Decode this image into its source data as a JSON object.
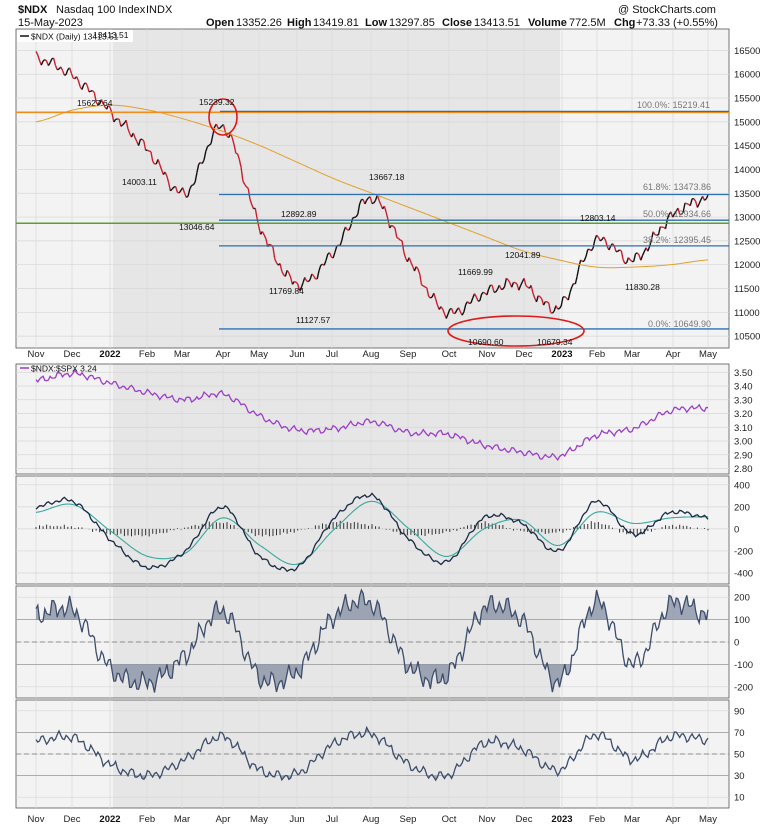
{
  "header": {
    "symbol": "$NDX",
    "name": "Nasdaq 100 Index",
    "exchange": "INDX",
    "date": "15-May-2023",
    "open_label": "Open",
    "open": "13352.26",
    "high_label": "High",
    "high": "13419.81",
    "low_label": "Low",
    "low": "13297.85",
    "close_label": "Close",
    "close": "13413.51",
    "volume_label": "Volume",
    "volume": "772.5M",
    "chg_label": "Chg",
    "chg": "+73.33 (+0.55%)",
    "watermark": "@ StockCharts.com"
  },
  "legend": {
    "main": "$NDX (Daily) 13413.51",
    "ratio": "$NDX:$SPX 3.24"
  },
  "x_ticks": [
    "Nov",
    "Dec",
    "2022",
    "Feb",
    "Mar",
    "Apr",
    "May",
    "Jun",
    "Jul",
    "Aug",
    "Sep",
    "Oct",
    "Nov",
    "Dec",
    "2023",
    "Feb",
    "Mar",
    "Apr",
    "May"
  ],
  "price_ticks": [
    "16500",
    "16000",
    "15500",
    "15000",
    "14500",
    "14000",
    "13500",
    "13000",
    "12500",
    "12000",
    "11500",
    "11000",
    "10500"
  ],
  "ratio_ticks": [
    "3.50",
    "3.40",
    "3.30",
    "3.20",
    "3.10",
    "3.00",
    "2.90",
    "2.80"
  ],
  "macd_ticks": [
    "400",
    "200",
    "0",
    "-200",
    "-400"
  ],
  "cci_ticks": [
    "200",
    "100",
    "0",
    "-100",
    "-200"
  ],
  "rsi_ticks": [
    "90",
    "70",
    "50",
    "30",
    "10"
  ],
  "fib_labels": [
    "100.0%: 15219.41",
    "61.8%: 13473.86",
    "50.0%: 12934.66",
    "38.2%: 12395.45",
    "0.0%: 10649.90"
  ],
  "price_annotations": [
    "13413.51",
    "15627.64",
    "15239.32",
    "14003.11",
    "13046.64",
    "12892.89",
    "11769.84",
    "11127.57",
    "13667.18",
    "11669.99",
    "12041.89",
    "10690.60",
    "10679.34",
    "12803.14",
    "11830.28"
  ],
  "colors": {
    "price_up": "#111111",
    "price_down": "#cc1f2e",
    "fib_line": "#2f6fb3",
    "ma_line": "#e0a12a",
    "orange_line": "#f08c1c",
    "green_line": "#5aa02c",
    "ratio_line": "#9b3fc9",
    "macd_main": "#1a2a44",
    "macd_signal": "#3aa8a0",
    "osc_line": "#3d4d6a",
    "circle": "#e01818",
    "shade": "#e6e6e6"
  },
  "chart_data": [
    {
      "type": "line",
      "title": "$NDX (Daily) 13413.51",
      "ylim": [
        10250,
        16950
      ],
      "x": [
        "Nov 2021",
        "Dec 2021",
        "Jan 2022",
        "Feb 2022",
        "Mar 2022",
        "Apr 2022",
        "May 2022",
        "Jun 2022",
        "Jul 2022",
        "Aug 2022",
        "Sep 2022",
        "Oct 2022",
        "Nov 2022",
        "Dec 2022",
        "Jan 2023",
        "Feb 2023",
        "Mar 2023",
        "Apr 2023",
        "May 2023"
      ],
      "series": [
        {
          "name": "$NDX",
          "values": [
            16350,
            15950,
            15200,
            14400,
            13500,
            14900,
            12800,
            11600,
            12300,
            13400,
            12100,
            11000,
            11400,
            11600,
            11100,
            12500,
            12100,
            13000,
            13413.51
          ]
        }
      ],
      "fib_levels": [
        15219.41,
        13473.86,
        12934.66,
        12395.45,
        10649.9
      ],
      "horizontal_lines": [
        15200,
        12870
      ]
    },
    {
      "type": "line",
      "title": "$NDX:$SPX 3.24",
      "ylim": [
        2.76,
        3.56
      ],
      "x": [
        "Nov 2021",
        "Dec 2021",
        "Jan 2022",
        "Feb 2022",
        "Mar 2022",
        "Apr 2022",
        "May 2022",
        "Jun 2022",
        "Jul 2022",
        "Aug 2022",
        "Sep 2022",
        "Oct 2022",
        "Nov 2022",
        "Dec 2022",
        "Jan 2023",
        "Feb 2023",
        "Mar 2023",
        "Apr 2023",
        "May 2023"
      ],
      "series": [
        {
          "name": "$NDX:$SPX",
          "values": [
            3.44,
            3.49,
            3.42,
            3.35,
            3.3,
            3.34,
            3.18,
            3.08,
            3.09,
            3.14,
            3.06,
            3.05,
            2.97,
            2.92,
            2.89,
            3.04,
            3.09,
            3.22,
            3.24
          ]
        }
      ]
    },
    {
      "type": "line",
      "ylim": [
        -500,
        480
      ],
      "x": [
        "Nov 2021",
        "Dec 2021",
        "Jan 2022",
        "Feb 2022",
        "Mar 2022",
        "Apr 2022",
        "May 2022",
        "Jun 2022",
        "Jul 2022",
        "Aug 2022",
        "Sep 2022",
        "Oct 2022",
        "Nov 2022",
        "Dec 2022",
        "Jan 2023",
        "Feb 2023",
        "Mar 2023",
        "Apr 2023",
        "May 2023"
      ],
      "series": [
        {
          "values": [
            200,
            250,
            -100,
            -350,
            -200,
            200,
            -250,
            -350,
            100,
            300,
            -100,
            -300,
            100,
            50,
            -200,
            250,
            -50,
            150,
            100
          ]
        },
        {
          "values": [
            150,
            220,
            -20,
            -250,
            -220,
            100,
            -150,
            -320,
            0,
            250,
            0,
            -250,
            0,
            80,
            -150,
            150,
            50,
            100,
            110
          ]
        }
      ]
    },
    {
      "type": "line",
      "ylim": [
        -250,
        250
      ],
      "x": [
        "Nov 2021",
        "Dec 2021",
        "Jan 2022",
        "Feb 2022",
        "Mar 2022",
        "Apr 2022",
        "May 2022",
        "Jun 2022",
        "Jul 2022",
        "Aug 2022",
        "Sep 2022",
        "Oct 2022",
        "Nov 2022",
        "Dec 2022",
        "Jan 2023",
        "Feb 2023",
        "Mar 2023",
        "Apr 2023",
        "May 2023"
      ],
      "series": [
        {
          "values": [
            120,
            140,
            -120,
            -180,
            -60,
            140,
            -160,
            -130,
            120,
            170,
            -110,
            -150,
            150,
            100,
            -180,
            180,
            -100,
            170,
            120
          ]
        }
      ]
    },
    {
      "type": "line",
      "ylim": [
        0,
        100
      ],
      "x": [
        "Nov 2021",
        "Dec 2021",
        "Jan 2022",
        "Feb 2022",
        "Mar 2022",
        "Apr 2022",
        "May 2022",
        "Jun 2022",
        "Jul 2022",
        "Aug 2022",
        "Sep 2022",
        "Oct 2022",
        "Nov 2022",
        "Dec 2022",
        "Jan 2023",
        "Feb 2023",
        "Mar 2023",
        "Apr 2023",
        "May 2023"
      ],
      "series": [
        {
          "values": [
            62,
            65,
            40,
            30,
            45,
            66,
            35,
            32,
            60,
            68,
            40,
            30,
            60,
            55,
            35,
            68,
            45,
            66,
            63
          ]
        }
      ]
    }
  ]
}
